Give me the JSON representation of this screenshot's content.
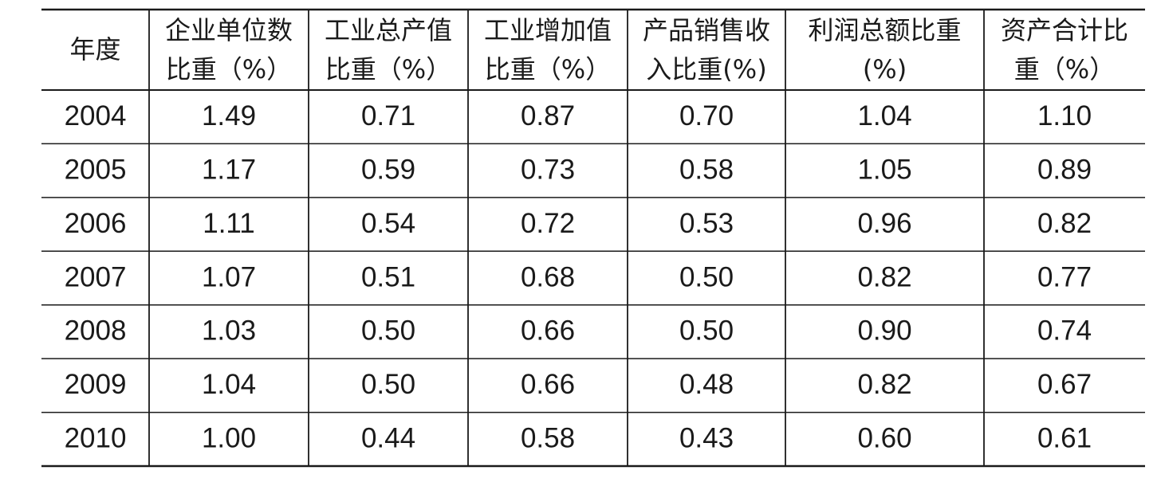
{
  "table": {
    "header": [
      [
        "年度"
      ],
      [
        "企业单位数",
        "比重（%）"
      ],
      [
        "工业总产值",
        "比重（%）"
      ],
      [
        "工业增加值",
        "比重（%）"
      ],
      [
        "产品销售收",
        "入比重(%)"
      ],
      [
        "利润总额比重",
        "(%)"
      ],
      [
        "资产合计比",
        "重（%）"
      ]
    ],
    "rows": [
      [
        "2004",
        "1.49",
        "0.71",
        "0.87",
        "0.70",
        "1.04",
        "1.10"
      ],
      [
        "2005",
        "1.17",
        "0.59",
        "0.73",
        "0.58",
        "1.05",
        "0.89"
      ],
      [
        "2006",
        "1.11",
        "0.54",
        "0.72",
        "0.53",
        "0.96",
        "0.82"
      ],
      [
        "2007",
        "1.07",
        "0.51",
        "0.68",
        "0.50",
        "0.82",
        "0.77"
      ],
      [
        "2008",
        "1.03",
        "0.50",
        "0.66",
        "0.50",
        "0.90",
        "0.74"
      ],
      [
        "2009",
        "1.04",
        "0.50",
        "0.66",
        "0.48",
        "0.82",
        "0.67"
      ],
      [
        "2010",
        "1.00",
        "0.44",
        "0.58",
        "0.43",
        "0.60",
        "0.61"
      ]
    ]
  }
}
